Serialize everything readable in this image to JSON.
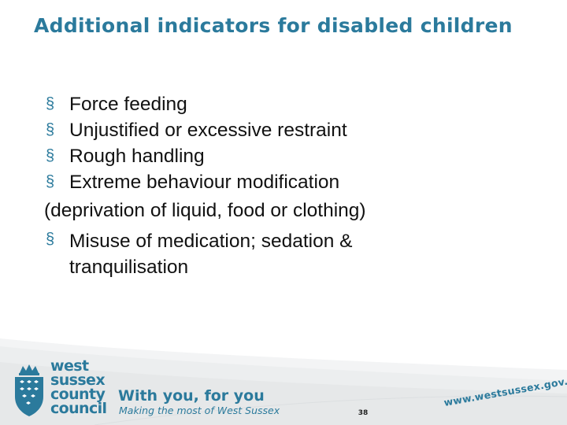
{
  "slide": {
    "title": "Additional indicators for disabled children",
    "bullet_symbol": "§",
    "items": [
      "Force feeding",
      "Unjustified or excessive restraint",
      "Rough handling",
      "Extreme behaviour modification"
    ],
    "continuation": "(deprivation of liquid, food or clothing)",
    "last_item": "Misuse of medication; sedation & tranquilisation"
  },
  "footer": {
    "council_name": [
      "west",
      "sussex",
      "county",
      "council"
    ],
    "tagline": "With you, for you",
    "sub_tagline": "Making the most of West Sussex",
    "page_number": "38",
    "web_address": "www.westsussex.gov.uk"
  },
  "colors": {
    "accent": "#2b7a9c",
    "text": "#111111",
    "background": "#ffffff"
  }
}
